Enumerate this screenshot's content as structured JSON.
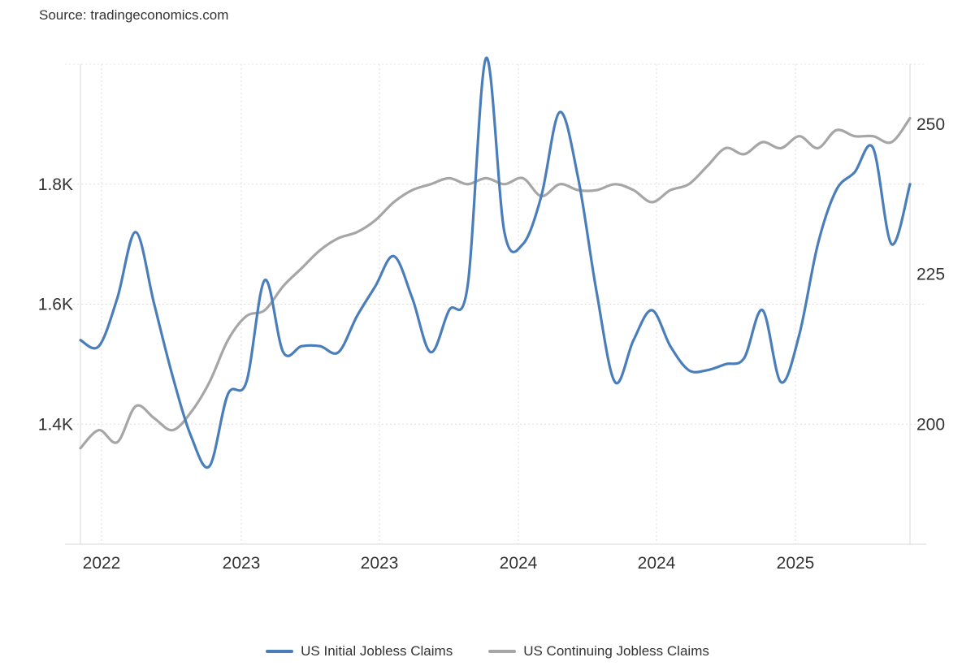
{
  "source": "Source: tradingeconomics.com",
  "chart_data": {
    "type": "line",
    "title": "",
    "grid": true,
    "legend_position": "bottom-center",
    "x_tick_labels": [
      "2022",
      "2023",
      "2023",
      "2024",
      "2024",
      "2025"
    ],
    "x_range": [
      "2021-12",
      "2025-09"
    ],
    "left_axis": {
      "ticks": [
        1400,
        1600,
        1800
      ],
      "tick_labels": [
        "1.4K",
        "1.6K",
        "1.8K"
      ],
      "range": [
        1200,
        2000
      ]
    },
    "right_axis": {
      "ticks": [
        200,
        225,
        250
      ],
      "tick_labels": [
        "200",
        "225",
        "250"
      ],
      "range": [
        180,
        260
      ]
    },
    "series": [
      {
        "name": "US Initial Jobless Claims",
        "axis": "right",
        "color": "#4a7ebb",
        "x": [
          "2021-12",
          "2022-01",
          "2022-02",
          "2022-03",
          "2022-04",
          "2022-05",
          "2022-06",
          "2022-07",
          "2022-08",
          "2022-09",
          "2022-10",
          "2022-11",
          "2022-12",
          "2023-01",
          "2023-02",
          "2023-03",
          "2023-04",
          "2023-05",
          "2023-06",
          "2023-07",
          "2023-08",
          "2023-09",
          "2023-10",
          "2023-11",
          "2023-12",
          "2024-01",
          "2024-02",
          "2024-03",
          "2024-04",
          "2024-05",
          "2024-06",
          "2024-07",
          "2024-08",
          "2024-09",
          "2024-10",
          "2024-11",
          "2024-12",
          "2025-01",
          "2025-02",
          "2025-03",
          "2025-04",
          "2025-05",
          "2025-06",
          "2025-07",
          "2025-08",
          "2025-09"
        ],
        "y": [
          214,
          213,
          221,
          232,
          220,
          208,
          198,
          193,
          205,
          207,
          224,
          212,
          213,
          213,
          212,
          218,
          223,
          228,
          221,
          212,
          219,
          223,
          261,
          232,
          230,
          238,
          252,
          241,
          222,
          207,
          214,
          219,
          213,
          209,
          209,
          210,
          211,
          219,
          207,
          215,
          230,
          239,
          242,
          246,
          230,
          240
        ]
      },
      {
        "name": "US Continuing Jobless Claims",
        "axis": "left",
        "color": "#a6a6a6",
        "x": [
          "2021-12",
          "2022-01",
          "2022-02",
          "2022-03",
          "2022-04",
          "2022-05",
          "2022-06",
          "2022-07",
          "2022-08",
          "2022-09",
          "2022-10",
          "2022-11",
          "2022-12",
          "2023-01",
          "2023-02",
          "2023-03",
          "2023-04",
          "2023-05",
          "2023-06",
          "2023-07",
          "2023-08",
          "2023-09",
          "2023-10",
          "2023-11",
          "2023-12",
          "2024-01",
          "2024-02",
          "2024-03",
          "2024-04",
          "2024-05",
          "2024-06",
          "2024-07",
          "2024-08",
          "2024-09",
          "2024-10",
          "2024-11",
          "2024-12",
          "2025-01",
          "2025-02",
          "2025-03",
          "2025-04",
          "2025-05",
          "2025-06",
          "2025-07",
          "2025-08",
          "2025-09"
        ],
        "y": [
          1360,
          1390,
          1370,
          1430,
          1410,
          1390,
          1420,
          1470,
          1540,
          1580,
          1590,
          1630,
          1660,
          1690,
          1710,
          1720,
          1740,
          1770,
          1790,
          1800,
          1810,
          1800,
          1810,
          1800,
          1810,
          1780,
          1800,
          1790,
          1790,
          1800,
          1790,
          1770,
          1790,
          1800,
          1830,
          1860,
          1850,
          1870,
          1860,
          1880,
          1860,
          1890,
          1880,
          1880,
          1870,
          1910
        ]
      }
    ]
  },
  "legend": [
    {
      "label": "US Initial Jobless Claims",
      "color": "#4a7ebb"
    },
    {
      "label": "US Continuing Jobless Claims",
      "color": "#a6a6a6"
    }
  ]
}
